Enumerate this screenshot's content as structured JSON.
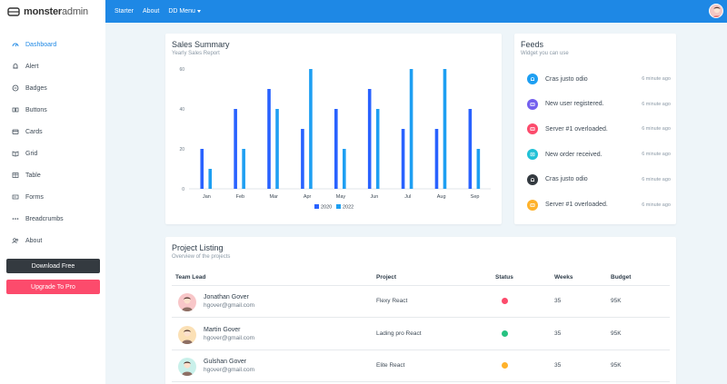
{
  "brand": {
    "bold": "monster",
    "thin": "admin"
  },
  "topnav": {
    "items": [
      "Starter",
      "About",
      "DD Menu"
    ]
  },
  "sidebar": {
    "items": [
      {
        "label": "Dashboard",
        "icon": "dashboard-icon"
      },
      {
        "label": "Alert",
        "icon": "bell-icon"
      },
      {
        "label": "Badges",
        "icon": "badge-icon"
      },
      {
        "label": "Buttons",
        "icon": "buttons-icon"
      },
      {
        "label": "Cards",
        "icon": "card-icon"
      },
      {
        "label": "Grid",
        "icon": "grid-icon"
      },
      {
        "label": "Table",
        "icon": "table-icon"
      },
      {
        "label": "Forms",
        "icon": "forms-icon"
      },
      {
        "label": "Breadcrumbs",
        "icon": "breadcrumbs-icon"
      },
      {
        "label": "About",
        "icon": "users-icon"
      }
    ],
    "download_label": "Download Free",
    "upgrade_label": "Upgrade To Pro"
  },
  "sales": {
    "title": "Sales Summary",
    "subtitle": "Yearly Sales Report"
  },
  "chart_data": {
    "type": "bar",
    "categories": [
      "Jan",
      "Feb",
      "Mar",
      "Apr",
      "May",
      "Jun",
      "Jul",
      "Aug",
      "Sep"
    ],
    "series": [
      {
        "name": "2020",
        "values": [
          20,
          40,
          50,
          30,
          40,
          50,
          30,
          30,
          40
        ],
        "color": "#2962ff"
      },
      {
        "name": "2022",
        "values": [
          10,
          20,
          40,
          60,
          20,
          40,
          60,
          60,
          20
        ],
        "color": "#1e9ff2"
      }
    ],
    "yticks": [
      0,
      20,
      40,
      60
    ],
    "ylim": [
      0,
      60
    ],
    "legend": "bottom"
  },
  "feeds": {
    "title": "Feeds",
    "subtitle": "Widget you can use",
    "items": [
      {
        "text": "Cras justo odio",
        "time": "6 minute ago",
        "color": "#1e9ff2",
        "icon": "bell-icon"
      },
      {
        "text": "New user registered.",
        "time": "6 minute ago",
        "color": "#7460ee",
        "icon": "server-icon"
      },
      {
        "text": "Server #1 overloaded.",
        "time": "6 minute ago",
        "color": "#fc4b6c",
        "icon": "server-icon"
      },
      {
        "text": "New order received.",
        "time": "6 minute ago",
        "color": "#21c1d6",
        "icon": "cart-icon"
      },
      {
        "text": "Cras justo odio",
        "time": "6 minute ago",
        "color": "#343a40",
        "icon": "bell-icon"
      },
      {
        "text": "Server #1 overloaded.",
        "time": "6 minute ago",
        "color": "#ffb22b",
        "icon": "server-icon"
      }
    ]
  },
  "projects": {
    "title": "Project Listing",
    "subtitle": "Overview of the projects",
    "headers": [
      "Team Lead",
      "Project",
      "Status",
      "Weeks",
      "Budget"
    ],
    "rows": [
      {
        "name": "Jonathan Gover",
        "email": "hgover@gmail.com",
        "project": "Flexy React",
        "status_color": "#fc4b6c",
        "weeks": "35",
        "budget": "95K",
        "avatar_color": "#f8c6c8"
      },
      {
        "name": "Martin Gover",
        "email": "hgover@gmail.com",
        "project": "Lading pro React",
        "status_color": "#26c281",
        "weeks": "35",
        "budget": "95K",
        "avatar_color": "#fbe0b5"
      },
      {
        "name": "Gulshan Gover",
        "email": "hgover@gmail.com",
        "project": "Elite React",
        "status_color": "#ffb22b",
        "weeks": "35",
        "budget": "95K",
        "avatar_color": "#c9f0ea"
      }
    ]
  }
}
